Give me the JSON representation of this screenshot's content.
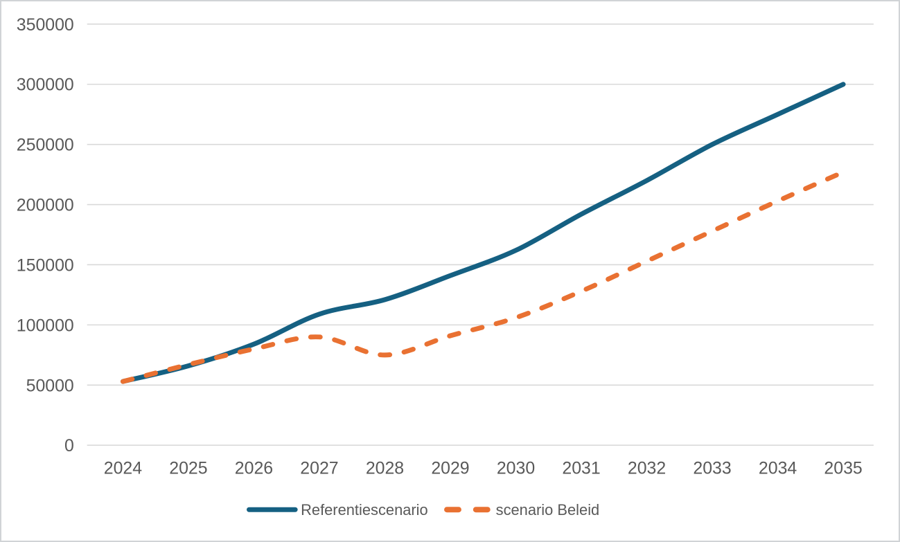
{
  "chart_data": {
    "type": "line",
    "title": "",
    "xlabel": "",
    "ylabel": "",
    "categories": [
      "2024",
      "2025",
      "2026",
      "2027",
      "2028",
      "2029",
      "2030",
      "2031",
      "2032",
      "2033",
      "2034",
      "2035"
    ],
    "series": [
      {
        "name": "Referentiescenario",
        "style": "solid",
        "color": "#156082",
        "values": [
          53000,
          66000,
          84000,
          109000,
          121000,
          141000,
          162000,
          192000,
          220000,
          250000,
          275000,
          300000
        ]
      },
      {
        "name": "scenario Beleid",
        "style": "dashed",
        "color": "#E97132",
        "values": [
          53000,
          67000,
          80000,
          90000,
          75000,
          91000,
          106000,
          128000,
          153000,
          178000,
          203000,
          227000
        ]
      }
    ],
    "ylim": [
      0,
      350000
    ],
    "y_tick_step": 50000,
    "y_tick_labels": [
      "0",
      "50000",
      "100000",
      "150000",
      "200000",
      "250000",
      "300000",
      "350000"
    ],
    "grid": "horizontal",
    "legend_position": "bottom",
    "smoothed_lines": true
  },
  "style_tokens": {
    "text_color": "#595959",
    "grid_color": "#d9d9d9",
    "background": "#ffffff",
    "border_color": "#d0d3d6"
  }
}
